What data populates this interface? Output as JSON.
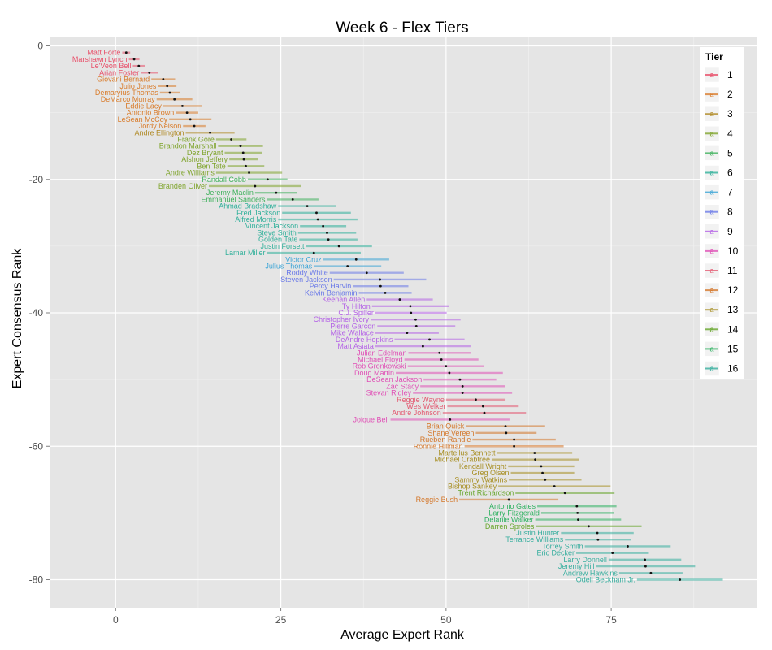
{
  "chart_data": {
    "type": "scatter",
    "title": "Week 6 - Flex Tiers",
    "xlabel": "Average Expert Rank",
    "ylabel": "Expert Consensus Rank",
    "xlim": [
      -10,
      97
    ],
    "ylim": [
      -84.2,
      1.4
    ],
    "xticks": [
      0,
      25,
      50,
      75
    ],
    "yticks": [
      0,
      -20,
      -40,
      -60,
      -80
    ],
    "grid": true,
    "legend": {
      "title": "Tier",
      "position": "right",
      "entries": [
        "1",
        "2",
        "3",
        "4",
        "5",
        "6",
        "7",
        "8",
        "9",
        "10",
        "11",
        "12",
        "13",
        "14",
        "15",
        "16"
      ],
      "key_glyph": "a"
    },
    "tier_colors": [
      "#e8506a",
      "#d97b2a",
      "#b08a26",
      "#7fa42c",
      "#3fb15c",
      "#30b09a",
      "#3aa4d6",
      "#6b7ae8",
      "#b462e6",
      "#e050b6",
      "#e35a72",
      "#d4772a",
      "#a88f24",
      "#67a62c",
      "#30b262",
      "#36ae9e"
    ],
    "points": [
      {
        "name": "Matt Forte",
        "tier": 1,
        "x": 1.6,
        "y": -1,
        "sd": 0.6
      },
      {
        "name": "Marshawn Lynch",
        "tier": 1,
        "x": 2.8,
        "y": -2,
        "sd": 0.8
      },
      {
        "name": "Le'Veon Bell",
        "tier": 1,
        "x": 3.5,
        "y": -3,
        "sd": 0.9
      },
      {
        "name": "Arian Foster",
        "tier": 1,
        "x": 5.1,
        "y": -4,
        "sd": 1.3
      },
      {
        "name": "Giovani Bernard",
        "tier": 2,
        "x": 7.2,
        "y": -5,
        "sd": 1.8
      },
      {
        "name": "Julio Jones",
        "tier": 2,
        "x": 7.8,
        "y": -6,
        "sd": 1.4
      },
      {
        "name": "Demaryius Thomas",
        "tier": 2,
        "x": 8.2,
        "y": -7,
        "sd": 1.5
      },
      {
        "name": "DeMarco Murray",
        "tier": 2,
        "x": 8.9,
        "y": -8,
        "sd": 2.7
      },
      {
        "name": "Eddie Lacy",
        "tier": 2,
        "x": 10.1,
        "y": -9,
        "sd": 2.9
      },
      {
        "name": "Antonio Brown",
        "tier": 2,
        "x": 10.8,
        "y": -10,
        "sd": 1.7
      },
      {
        "name": "LeSean McCoy",
        "tier": 2,
        "x": 11.3,
        "y": -11,
        "sd": 3.2
      },
      {
        "name": "Jordy Nelson",
        "tier": 2,
        "x": 11.9,
        "y": -12,
        "sd": 1.7
      },
      {
        "name": "Andre Ellington",
        "tier": 3,
        "x": 14.3,
        "y": -13,
        "sd": 3.7
      },
      {
        "name": "Frank Gore",
        "tier": 4,
        "x": 17.5,
        "y": -14,
        "sd": 2.3
      },
      {
        "name": "Brandon Marshall",
        "tier": 4,
        "x": 18.9,
        "y": -15,
        "sd": 3.4
      },
      {
        "name": "Dez Bryant",
        "tier": 4,
        "x": 19.3,
        "y": -16,
        "sd": 2.8
      },
      {
        "name": "Alshon Jeffery",
        "tier": 4,
        "x": 19.4,
        "y": -17,
        "sd": 2.2
      },
      {
        "name": "Ben Tate",
        "tier": 4,
        "x": 19.7,
        "y": -18,
        "sd": 2.8
      },
      {
        "name": "Andre Williams",
        "tier": 4,
        "x": 20.2,
        "y": -19,
        "sd": 5.0
      },
      {
        "name": "Randall Cobb",
        "tier": 5,
        "x": 23.0,
        "y": -20,
        "sd": 3.0
      },
      {
        "name": "Branden Oliver",
        "tier": 4,
        "x": 21.1,
        "y": -21,
        "sd": 7.0
      },
      {
        "name": "Jeremy Maclin",
        "tier": 5,
        "x": 24.3,
        "y": -22,
        "sd": 3.2
      },
      {
        "name": "Emmanuel Sanders",
        "tier": 5,
        "x": 26.8,
        "y": -23,
        "sd": 3.9
      },
      {
        "name": "Ahmad Bradshaw",
        "tier": 6,
        "x": 29.0,
        "y": -24,
        "sd": 4.4
      },
      {
        "name": "Fred Jackson",
        "tier": 6,
        "x": 30.4,
        "y": -25,
        "sd": 5.2
      },
      {
        "name": "Alfred Morris",
        "tier": 6,
        "x": 30.6,
        "y": -26,
        "sd": 6.0
      },
      {
        "name": "Vincent Jackson",
        "tier": 6,
        "x": 31.4,
        "y": -27,
        "sd": 3.5
      },
      {
        "name": "Steve Smith",
        "tier": 6,
        "x": 32.0,
        "y": -28,
        "sd": 4.4
      },
      {
        "name": "Golden Tate",
        "tier": 6,
        "x": 32.2,
        "y": -29,
        "sd": 4.4
      },
      {
        "name": "Justin Forsett",
        "tier": 6,
        "x": 33.8,
        "y": -30,
        "sd": 5.0
      },
      {
        "name": "Lamar Miller",
        "tier": 6,
        "x": 30.0,
        "y": -31,
        "sd": 7.1
      },
      {
        "name": "Victor Cruz",
        "tier": 7,
        "x": 36.4,
        "y": -32,
        "sd": 5.0
      },
      {
        "name": "Julius Thomas",
        "tier": 7,
        "x": 35.1,
        "y": -33,
        "sd": 5.1
      },
      {
        "name": "Roddy White",
        "tier": 8,
        "x": 38.0,
        "y": -34,
        "sd": 5.6
      },
      {
        "name": "Steven Jackson",
        "tier": 8,
        "x": 40.0,
        "y": -35,
        "sd": 7.0
      },
      {
        "name": "Percy Harvin",
        "tier": 8,
        "x": 40.1,
        "y": -36,
        "sd": 4.2
      },
      {
        "name": "Kelvin Benjamin",
        "tier": 8,
        "x": 40.8,
        "y": -37,
        "sd": 4.0
      },
      {
        "name": "Keenan Allen",
        "tier": 9,
        "x": 43.0,
        "y": -38,
        "sd": 5.0
      },
      {
        "name": "Ty Hilton",
        "tier": 9,
        "x": 44.6,
        "y": -39,
        "sd": 5.8
      },
      {
        "name": "C.J. Spiller",
        "tier": 9,
        "x": 44.7,
        "y": -40,
        "sd": 5.4
      },
      {
        "name": "Christopher Ivory",
        "tier": 9,
        "x": 45.4,
        "y": -41,
        "sd": 6.8
      },
      {
        "name": "Pierre Garcon",
        "tier": 9,
        "x": 45.5,
        "y": -42,
        "sd": 5.9
      },
      {
        "name": "Mike Wallace",
        "tier": 9,
        "x": 44.1,
        "y": -43,
        "sd": 4.8
      },
      {
        "name": "DeAndre Hopkins",
        "tier": 9,
        "x": 47.5,
        "y": -44,
        "sd": 5.3
      },
      {
        "name": "Matt Asiata",
        "tier": 9,
        "x": 46.5,
        "y": -45,
        "sd": 7.2
      },
      {
        "name": "Julian Edelman",
        "tier": 10,
        "x": 49.0,
        "y": -46,
        "sd": 4.7
      },
      {
        "name": "Michael Floyd",
        "tier": 10,
        "x": 49.3,
        "y": -47,
        "sd": 5.6
      },
      {
        "name": "Rob Gronkowski",
        "tier": 10,
        "x": 50.0,
        "y": -48,
        "sd": 5.8
      },
      {
        "name": "Doug Martin",
        "tier": 10,
        "x": 50.5,
        "y": -49,
        "sd": 8.1
      },
      {
        "name": "DeSean Jackson",
        "tier": 10,
        "x": 52.1,
        "y": -50,
        "sd": 5.5
      },
      {
        "name": "Zac Stacy",
        "tier": 10,
        "x": 52.5,
        "y": -51,
        "sd": 6.4
      },
      {
        "name": "Stevan Ridley",
        "tier": 10,
        "x": 52.5,
        "y": -52,
        "sd": 7.5
      },
      {
        "name": "Reggie Wayne",
        "tier": 11,
        "x": 54.5,
        "y": -53,
        "sd": 4.5
      },
      {
        "name": "Wes Welker",
        "tier": 11,
        "x": 55.6,
        "y": -54,
        "sd": 5.4
      },
      {
        "name": "Andre Johnson",
        "tier": 11,
        "x": 55.8,
        "y": -55,
        "sd": 6.3
      },
      {
        "name": "Joique Bell",
        "tier": 10,
        "x": 50.6,
        "y": -56,
        "sd": 9.0
      },
      {
        "name": "Brian Quick",
        "tier": 12,
        "x": 59.0,
        "y": -57,
        "sd": 6.0
      },
      {
        "name": "Shane Vereen",
        "tier": 12,
        "x": 59.1,
        "y": -58,
        "sd": 4.6
      },
      {
        "name": "Rueben Randle",
        "tier": 12,
        "x": 60.3,
        "y": -59,
        "sd": 6.3
      },
      {
        "name": "Ronnie Hillman",
        "tier": 12,
        "x": 60.3,
        "y": -60,
        "sd": 7.5
      },
      {
        "name": "Martellus Bennett",
        "tier": 13,
        "x": 63.4,
        "y": -61,
        "sd": 5.7
      },
      {
        "name": "Michael Crabtree",
        "tier": 13,
        "x": 63.5,
        "y": -62,
        "sd": 6.6
      },
      {
        "name": "Kendall Wright",
        "tier": 13,
        "x": 64.4,
        "y": -63,
        "sd": 5.0
      },
      {
        "name": "Greg Olsen",
        "tier": 13,
        "x": 64.6,
        "y": -64,
        "sd": 4.8
      },
      {
        "name": "Sammy Watkins",
        "tier": 13,
        "x": 65.0,
        "y": -65,
        "sd": 5.5
      },
      {
        "name": "Bishop Sankey",
        "tier": 13,
        "x": 66.4,
        "y": -66,
        "sd": 8.5
      },
      {
        "name": "Trent Richardson",
        "tier": 14,
        "x": 68.0,
        "y": -67,
        "sd": 7.5
      },
      {
        "name": "Reggie Bush",
        "tier": 12,
        "x": 59.5,
        "y": -68,
        "sd": 7.5
      },
      {
        "name": "Antonio Gates",
        "tier": 15,
        "x": 69.8,
        "y": -69,
        "sd": 6.0
      },
      {
        "name": "Larry Fitzgerald",
        "tier": 15,
        "x": 69.9,
        "y": -70,
        "sd": 5.5
      },
      {
        "name": "Delanie Walker",
        "tier": 15,
        "x": 70.0,
        "y": -71,
        "sd": 6.5
      },
      {
        "name": "Darren Sproles",
        "tier": 14,
        "x": 71.6,
        "y": -72,
        "sd": 8.0
      },
      {
        "name": "Justin Hunter",
        "tier": 16,
        "x": 72.9,
        "y": -73,
        "sd": 5.5
      },
      {
        "name": "Terrance Williams",
        "tier": 16,
        "x": 73.0,
        "y": -74,
        "sd": 5.0
      },
      {
        "name": "Torrey Smith",
        "tier": 16,
        "x": 77.5,
        "y": -75,
        "sd": 6.5
      },
      {
        "name": "Eric Decker",
        "tier": 16,
        "x": 75.2,
        "y": -76,
        "sd": 5.5
      },
      {
        "name": "Larry Donnell",
        "tier": 16,
        "x": 80.1,
        "y": -77,
        "sd": 5.5
      },
      {
        "name": "Jeremy Hill",
        "tier": 16,
        "x": 80.2,
        "y": -78,
        "sd": 7.5
      },
      {
        "name": "Andrew Hawkins",
        "tier": 16,
        "x": 81.0,
        "y": -79,
        "sd": 4.8
      },
      {
        "name": "Odell Beckham Jr.",
        "tier": 16,
        "x": 85.4,
        "y": -80,
        "sd": 6.5
      }
    ]
  }
}
